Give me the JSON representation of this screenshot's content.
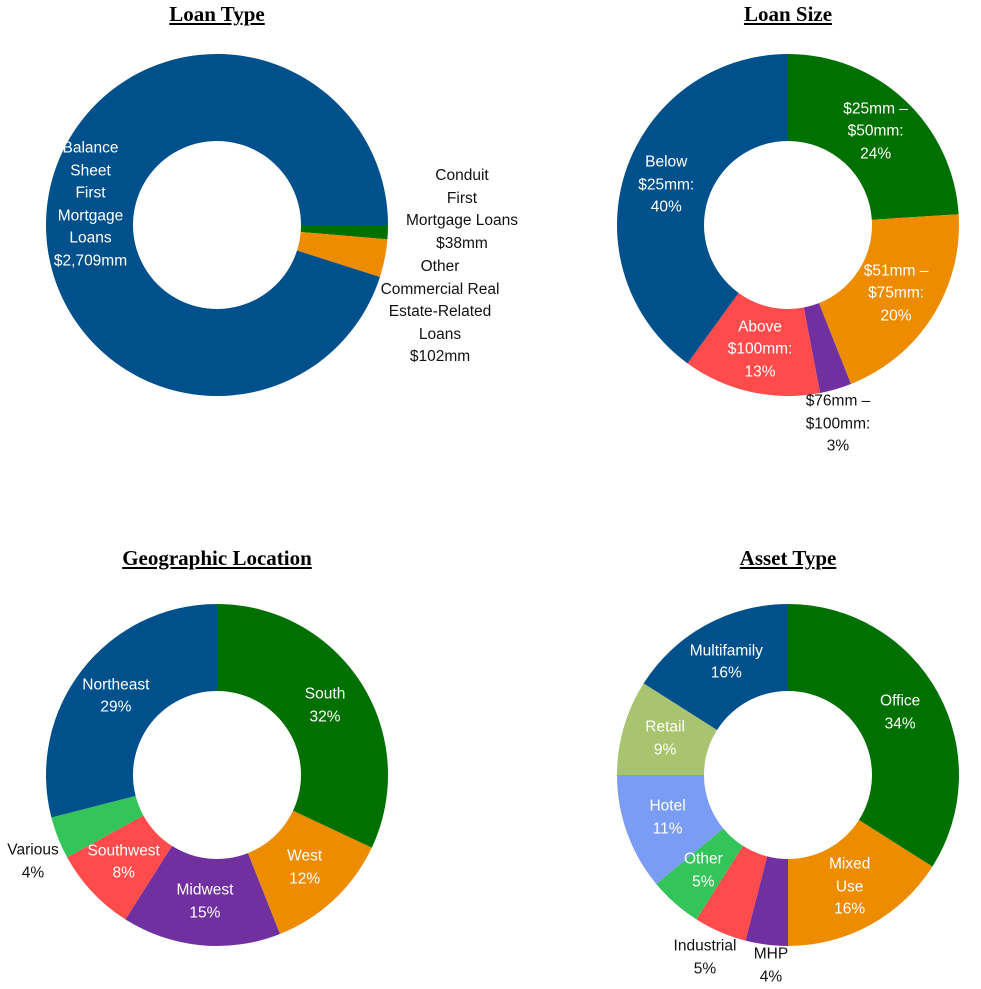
{
  "chart_data": [
    {
      "type": "pie",
      "title": "Loan Type",
      "start_angle_deg": 90,
      "slices": [
        {
          "lines": [
            "Conduit",
            "First",
            "Mortgage Loans",
            "$38mm"
          ],
          "value": 38,
          "color": "#007000",
          "outside": true
        },
        {
          "lines": [
            "Other",
            "Commercial Real",
            "Estate-Related",
            "Loans",
            "$102mm"
          ],
          "value": 102,
          "color": "#EE8C00",
          "outside": true
        },
        {
          "lines": [
            "Balance",
            "Sheet",
            "First",
            "Mortgage",
            "Loans",
            "$2,709mm"
          ],
          "value": 2709,
          "color": "#00508C",
          "outside": false
        }
      ]
    },
    {
      "type": "pie",
      "title": "Loan Size",
      "start_angle_deg": 0,
      "slices": [
        {
          "lines": [
            "$25mm –",
            "$50mm:",
            "24%"
          ],
          "value": 24,
          "color": "#007000",
          "outside": false
        },
        {
          "lines": [
            "$51mm –",
            "$75mm:",
            "20%"
          ],
          "value": 20,
          "color": "#EE8C00",
          "outside": false
        },
        {
          "lines": [
            "$76mm –",
            "$100mm:",
            "3%"
          ],
          "value": 3,
          "color": "#7030A0",
          "outside": true
        },
        {
          "lines": [
            "Above",
            "$100mm:",
            "13%"
          ],
          "value": 13,
          "color": "#FF4B4B",
          "outside": false
        },
        {
          "lines": [
            "Below",
            "$25mm:",
            "40%"
          ],
          "value": 40,
          "color": "#00508C",
          "outside": false
        }
      ]
    },
    {
      "type": "pie",
      "title": "Geographic Location",
      "start_angle_deg": 0,
      "slices": [
        {
          "lines": [
            "South",
            "32%"
          ],
          "value": 32,
          "color": "#007000",
          "outside": false
        },
        {
          "lines": [
            "West",
            "12%"
          ],
          "value": 12,
          "color": "#EE8C00",
          "outside": false
        },
        {
          "lines": [
            "Midwest",
            "15%"
          ],
          "value": 15,
          "color": "#7030A0",
          "outside": false
        },
        {
          "lines": [
            "Southwest",
            "8%"
          ],
          "value": 8,
          "color": "#FF4B4B",
          "outside": false
        },
        {
          "lines": [
            "Various",
            "4%"
          ],
          "value": 4,
          "color": "#33C55A",
          "outside": true
        },
        {
          "lines": [
            "Northeast",
            "29%"
          ],
          "value": 29,
          "color": "#00508C",
          "outside": false
        }
      ]
    },
    {
      "type": "pie",
      "title": "Asset Type",
      "start_angle_deg": 0,
      "slices": [
        {
          "lines": [
            "Office",
            "34%"
          ],
          "value": 34,
          "color": "#007000",
          "outside": false
        },
        {
          "lines": [
            "Mixed",
            "Use",
            "16%"
          ],
          "value": 16,
          "color": "#EE8C00",
          "outside": false
        },
        {
          "lines": [
            "MHP",
            "4%"
          ],
          "value": 4,
          "color": "#7030A0",
          "outside": true
        },
        {
          "lines": [
            "Industrial",
            "5%"
          ],
          "value": 5,
          "color": "#FF4B4B",
          "outside": true
        },
        {
          "lines": [
            "Other",
            "5%"
          ],
          "value": 5,
          "color": "#33C55A",
          "outside": false
        },
        {
          "lines": [
            "Hotel",
            "11%"
          ],
          "value": 11,
          "color": "#7A9CF5",
          "outside": false
        },
        {
          "lines": [
            "Retail",
            "9%"
          ],
          "value": 9,
          "color": "#A9C46E",
          "outside": false
        },
        {
          "lines": [
            "Multifamily",
            "16%"
          ],
          "value": 16,
          "color": "#00508C",
          "outside": false
        }
      ]
    }
  ]
}
